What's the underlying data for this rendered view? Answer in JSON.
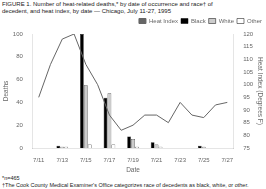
{
  "chart_data": {
    "type": "bar",
    "title": [
      "FIGURE 1.  Number of heat-related deaths,* by date of occurrence and race† of",
      "decedent, and heat index, by date — Chicago, July 11-27, 1995"
    ],
    "annotations": [
      "*n=465",
      "†The Cook County Medical Examiner's Office categorizes race of decedents as black, white, or other."
    ],
    "xlabel": "Date",
    "ylabel": "Deaths",
    "y2label": "Heat Index (Degrees F)",
    "categories": [
      "7/11",
      null,
      "7/13",
      null,
      "7/15",
      null,
      "7/17",
      null,
      "7/19",
      null,
      "7/21",
      null,
      "7/23",
      null,
      "7/25",
      null,
      "7/27"
    ],
    "series": [
      {
        "name": "Black",
        "color": "#000000",
        "values": [
          0,
          null,
          2,
          null,
          100,
          null,
          44,
          null,
          10,
          null,
          5,
          null,
          0,
          null,
          2,
          null,
          0
        ]
      },
      {
        "name": "White",
        "color": "#cccccc",
        "values": [
          0,
          null,
          1,
          null,
          55,
          null,
          48,
          null,
          8,
          null,
          3,
          null,
          0,
          null,
          1,
          null,
          0
        ]
      },
      {
        "name": "Other",
        "color": "#ffffff",
        "values": [
          0,
          null,
          1,
          null,
          3,
          null,
          3,
          null,
          1,
          null,
          1,
          null,
          0,
          null,
          0,
          null,
          0
        ]
      },
      {
        "name": "Heat Index",
        "type": "line",
        "axis": "y2",
        "color": "#666666",
        "values": [
          95,
          108,
          118,
          120,
          108,
          100,
          88,
          82,
          84,
          88,
          88,
          85,
          93,
          88,
          87,
          92,
          93
        ]
      }
    ],
    "ylim": [
      0,
      100
    ],
    "yticks": [
      0,
      20,
      40,
      60,
      80,
      100
    ],
    "y2lim": [
      75,
      120
    ],
    "y2ticks": [
      75,
      80,
      85,
      90,
      95,
      100,
      105,
      110,
      115,
      120
    ],
    "grid": false,
    "legend": "upper right"
  }
}
